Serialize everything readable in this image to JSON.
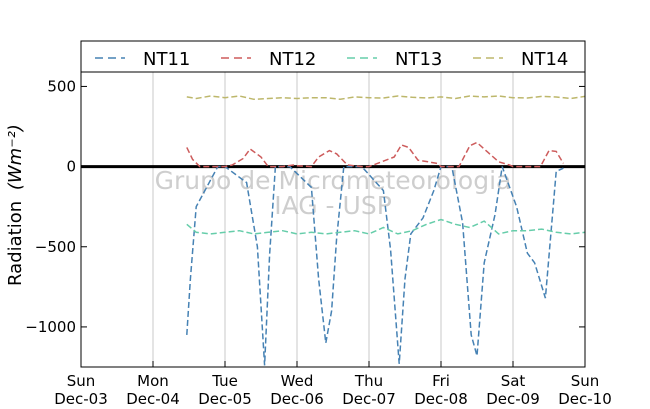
{
  "chart_data": {
    "type": "line",
    "title": "",
    "ylabel": "Radiation",
    "ylabel_unit": "(Wm⁻²)",
    "ylim": [
      -1250,
      590
    ],
    "xlim": [
      0,
      7
    ],
    "x_unit": "days",
    "yticks": [
      500,
      0,
      -500,
      -1000
    ],
    "ytick_labels": [
      "500",
      "0",
      "−500",
      "−1000"
    ],
    "xticks": [
      {
        "day": "Sun",
        "date": "Dec-03"
      },
      {
        "day": "Mon",
        "date": "Dec-04"
      },
      {
        "day": "Tue",
        "date": "Dec-05"
      },
      {
        "day": "Wed",
        "date": "Dec-06"
      },
      {
        "day": "Thu",
        "date": "Dec-07"
      },
      {
        "day": "Fri",
        "date": "Dec-08"
      },
      {
        "day": "Sat",
        "date": "Dec-09"
      },
      {
        "day": "Sun",
        "date": "Dec-10"
      }
    ],
    "grid": "vertical",
    "zero_line": true,
    "legend_position": "top",
    "watermark": [
      "Grupo de Micrometeorologia",
      "IAG - USP"
    ],
    "series": [
      {
        "name": "NT11",
        "color": "#4682b4",
        "style": "dashed",
        "x": [
          1.47,
          1.52,
          1.6,
          1.9,
          2.0,
          2.3,
          2.45,
          2.55,
          2.62,
          2.7,
          2.9,
          3.2,
          3.3,
          3.4,
          3.48,
          3.55,
          3.65,
          3.9,
          4.2,
          4.3,
          4.42,
          4.5,
          4.58,
          4.75,
          4.9,
          5.0,
          5.15,
          5.3,
          5.42,
          5.5,
          5.6,
          5.75,
          5.85,
          6.05,
          6.2,
          6.3,
          6.45,
          6.6,
          6.7
        ],
        "y": [
          -1050,
          -700,
          -250,
          0,
          0,
          -100,
          -500,
          -1240,
          -550,
          0,
          0,
          -130,
          -700,
          -1100,
          -900,
          -450,
          0,
          0,
          -150,
          -520,
          -1230,
          -700,
          -420,
          -320,
          -150,
          0,
          0,
          -350,
          -1050,
          -1180,
          -600,
          -300,
          0,
          -250,
          -540,
          -600,
          -820,
          -30,
          -10
        ]
      },
      {
        "name": "NT12",
        "color": "#cd5c5c",
        "style": "dashed",
        "x": [
          1.47,
          1.55,
          1.65,
          2.0,
          2.1,
          2.25,
          2.35,
          2.5,
          2.6,
          2.8,
          2.95,
          3.0,
          3.2,
          3.3,
          3.45,
          3.55,
          3.7,
          3.9,
          4.0,
          4.35,
          4.45,
          4.55,
          4.68,
          4.82,
          4.95,
          5.0,
          5.25,
          5.4,
          5.5,
          5.65,
          5.8,
          5.95,
          6.0,
          6.38,
          6.5,
          6.6,
          6.7
        ],
        "y": [
          120,
          45,
          0,
          0,
          10,
          50,
          110,
          60,
          0,
          0,
          10,
          5,
          0,
          60,
          100,
          80,
          10,
          0,
          0,
          60,
          135,
          120,
          40,
          30,
          20,
          0,
          0,
          130,
          150,
          90,
          30,
          10,
          0,
          0,
          100,
          95,
          20
        ]
      },
      {
        "name": "NT13",
        "color": "#66cdaa",
        "style": "dashed",
        "x": [
          1.47,
          1.6,
          1.8,
          2.0,
          2.2,
          2.4,
          2.6,
          2.8,
          3.0,
          3.2,
          3.4,
          3.6,
          3.8,
          4.0,
          4.2,
          4.4,
          4.6,
          4.8,
          5.0,
          5.2,
          5.4,
          5.6,
          5.8,
          6.0,
          6.2,
          6.4,
          6.6,
          6.8,
          7.0
        ],
        "y": [
          -360,
          -410,
          -420,
          -410,
          -400,
          -420,
          -410,
          -400,
          -420,
          -410,
          -420,
          -410,
          -400,
          -420,
          -380,
          -420,
          -400,
          -360,
          -330,
          -360,
          -380,
          -340,
          -420,
          -400,
          -400,
          -390,
          -410,
          -420,
          -410
        ]
      },
      {
        "name": "NT14",
        "color": "#bdb76b",
        "style": "dashed",
        "x": [
          1.47,
          1.6,
          1.8,
          2.0,
          2.2,
          2.4,
          2.6,
          2.8,
          3.0,
          3.2,
          3.4,
          3.6,
          3.8,
          4.0,
          4.2,
          4.4,
          4.6,
          4.8,
          5.0,
          5.2,
          5.4,
          5.6,
          5.8,
          6.0,
          6.2,
          6.4,
          6.6,
          6.8,
          7.0
        ],
        "y": [
          435,
          425,
          440,
          430,
          440,
          420,
          425,
          430,
          425,
          430,
          430,
          420,
          435,
          430,
          428,
          440,
          432,
          428,
          435,
          425,
          440,
          435,
          440,
          430,
          428,
          438,
          434,
          425,
          438
        ]
      }
    ]
  }
}
